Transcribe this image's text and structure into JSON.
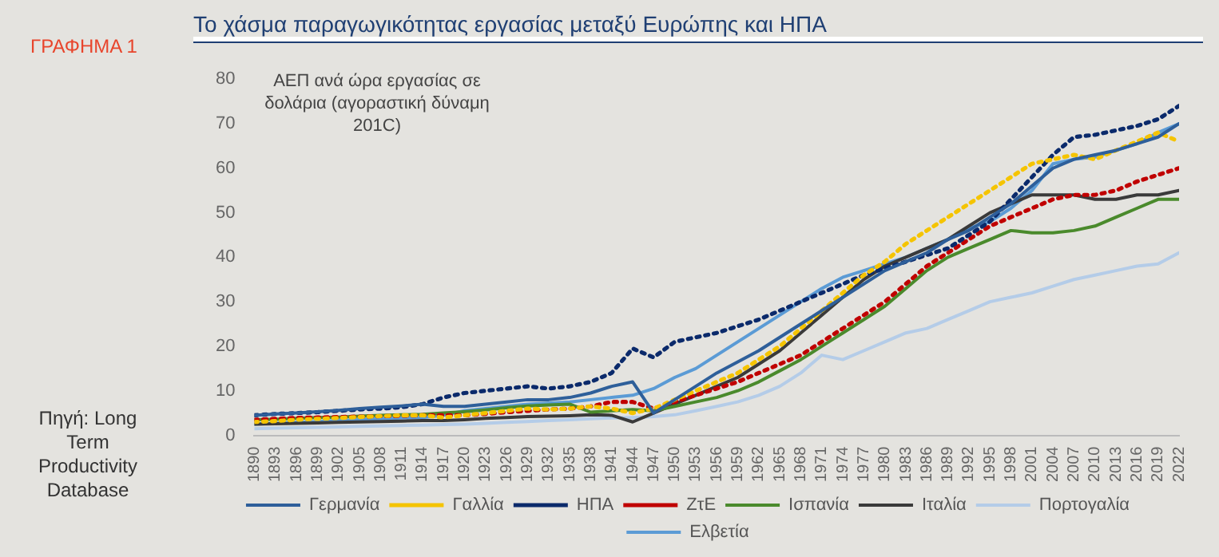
{
  "chart_data": {
    "type": "line",
    "title": "Το χάσμα παραγωγικότητας εργασίας μεταξύ Ευρώπης και ΗΠΑ",
    "ylabel": "ΑΕΠ ανά ώρα εργασίας σε δολάρια (αγοραστική δύναμη 201C)",
    "annotations": [
      "ΓΡΑΦΗΜΑ 1",
      "Πηγή: Long Term Productivity Database"
    ],
    "x": [
      1890,
      1893,
      1896,
      1899,
      1902,
      1905,
      1908,
      1911,
      1914,
      1917,
      1920,
      1923,
      1926,
      1929,
      1932,
      1935,
      1938,
      1941,
      1944,
      1947,
      1950,
      1953,
      1956,
      1959,
      1962,
      1965,
      1968,
      1971,
      1974,
      1977,
      1980,
      1983,
      1986,
      1989,
      1992,
      1995,
      1998,
      2001,
      2004,
      2007,
      2010,
      2013,
      2016,
      2019,
      2022
    ],
    "series": [
      {
        "name": "Γερμανία",
        "color": "#2e5f9a",
        "line_style": "solid",
        "values": [
          4.5,
          4.8,
          5,
          5.3,
          5.6,
          6,
          6.3,
          6.6,
          7,
          6.5,
          6.5,
          7,
          7.5,
          8,
          8,
          8.5,
          9.5,
          11,
          12,
          5,
          8,
          11,
          14,
          16.5,
          19,
          22,
          25,
          28,
          31,
          34,
          37,
          39,
          41,
          44,
          46,
          49,
          52,
          56,
          60,
          62,
          63,
          64,
          65.5,
          67,
          70
        ]
      },
      {
        "name": "Γαλλία",
        "color": "#f5c400",
        "line_style": "dotted",
        "values": [
          3,
          3.2,
          3.5,
          3.7,
          3.9,
          4.1,
          4.3,
          4.5,
          4.5,
          4,
          4.5,
          5,
          5.5,
          6,
          5.8,
          6,
          6.5,
          6,
          5,
          6,
          8,
          10,
          12,
          14,
          17,
          20,
          24,
          28,
          32,
          36,
          39,
          43,
          46,
          49,
          52,
          55,
          58,
          61,
          62,
          63,
          62,
          64,
          66,
          68,
          66
        ]
      },
      {
        "name": "ΗΠΑ",
        "color": "#0b2a6b",
        "line_style": "dotted",
        "values": [
          4.5,
          4.8,
          5,
          5.2,
          5.5,
          5.8,
          6,
          6.3,
          7,
          8.5,
          9.5,
          10,
          10.5,
          11,
          10.5,
          11,
          12,
          14,
          19.5,
          17.5,
          21,
          22,
          23,
          24.5,
          26,
          28,
          30,
          32,
          34,
          36,
          37.5,
          39,
          40.5,
          42,
          45,
          48,
          53,
          58,
          63,
          67,
          67.5,
          68.5,
          69.5,
          71,
          74
        ]
      },
      {
        "name": "ΖτΕ",
        "color": "#c00000",
        "line_style": "dotted",
        "values": [
          3.5,
          3.7,
          3.9,
          4,
          4.1,
          4.2,
          4.3,
          4.4,
          4.5,
          4.5,
          4.5,
          4.8,
          5.2,
          5.5,
          5.8,
          6,
          6.5,
          7.5,
          7.5,
          6,
          7.5,
          9,
          10.5,
          12,
          14,
          16,
          18,
          21,
          24,
          27,
          30,
          34,
          38,
          41,
          44,
          47,
          49,
          51,
          53,
          54,
          54,
          55,
          57,
          58.5,
          60
        ]
      },
      {
        "name": "Ισπανία",
        "color": "#4a8a2c",
        "line_style": "solid",
        "values": [
          3.5,
          3.6,
          3.8,
          4,
          4.1,
          4.3,
          4.5,
          4.6,
          4.7,
          5,
          5.3,
          5.7,
          6.2,
          6.6,
          6.8,
          7,
          5.2,
          5.5,
          5.8,
          5.5,
          6.5,
          7.5,
          8.5,
          10,
          12,
          14.5,
          17,
          20,
          23,
          26,
          29,
          33,
          37,
          40,
          42,
          44,
          46,
          45.5,
          45.5,
          46,
          47,
          49,
          51,
          53,
          53
        ]
      },
      {
        "name": "Ιταλία",
        "color": "#3a3a3a",
        "line_style": "solid",
        "values": [
          2.5,
          2.6,
          2.7,
          2.8,
          2.9,
          3,
          3.1,
          3.2,
          3.3,
          3.3,
          3.5,
          3.8,
          4,
          4.2,
          4.3,
          4.4,
          4.6,
          4.5,
          3,
          5,
          7,
          9,
          11,
          13,
          16,
          19,
          23,
          27,
          31,
          35,
          38,
          40,
          42,
          44,
          47,
          50,
          52,
          54,
          54,
          54,
          53,
          53,
          54,
          54,
          55
        ]
      },
      {
        "name": "Πορτογαλία",
        "color": "#b4cce8",
        "line_style": "solid",
        "values": [
          1.5,
          1.6,
          1.7,
          1.8,
          1.9,
          2,
          2.1,
          2.2,
          2.3,
          2.4,
          2.5,
          2.7,
          2.9,
          3.1,
          3.3,
          3.5,
          3.7,
          3.9,
          4,
          4.2,
          4.6,
          5.5,
          6.5,
          7.5,
          9,
          11,
          14,
          18,
          17,
          19,
          21,
          23,
          24,
          26,
          28,
          30,
          31,
          32,
          33.5,
          35,
          36,
          37,
          38,
          38.5,
          41
        ]
      },
      {
        "name": "Ελβετία",
        "color": "#5b9bd5",
        "line_style": "solid",
        "values": [
          2.5,
          2.7,
          2.9,
          3.1,
          3.3,
          3.5,
          3.7,
          3.9,
          4,
          4.5,
          5.5,
          6,
          6.5,
          7,
          7.2,
          7.5,
          8,
          8.5,
          9,
          10.5,
          13,
          15,
          18,
          21,
          24,
          27,
          30,
          33,
          35.5,
          37,
          38.5,
          40,
          42,
          44,
          46.5,
          48,
          51,
          55,
          61,
          62,
          62.5,
          64,
          65.5,
          68,
          70
        ]
      }
    ],
    "xlim": [
      1890,
      2022
    ],
    "xticks": [
      1890,
      1893,
      1896,
      1899,
      1902,
      1905,
      1908,
      1911,
      1914,
      1917,
      1920,
      1923,
      1926,
      1929,
      1932,
      1935,
      1938,
      1941,
      1944,
      1947,
      1950,
      1953,
      1956,
      1959,
      1962,
      1965,
      1968,
      1971,
      1974,
      1977,
      1980,
      1983,
      1986,
      1989,
      1992,
      1995,
      1998,
      2001,
      2004,
      2007,
      2010,
      2013,
      2016,
      2019,
      2022
    ],
    "ylim": [
      0,
      80
    ],
    "yticks": [
      0,
      10,
      20,
      30,
      40,
      50,
      60,
      70,
      80
    ],
    "grid": false,
    "legend": "bottom",
    "marker": "none"
  }
}
